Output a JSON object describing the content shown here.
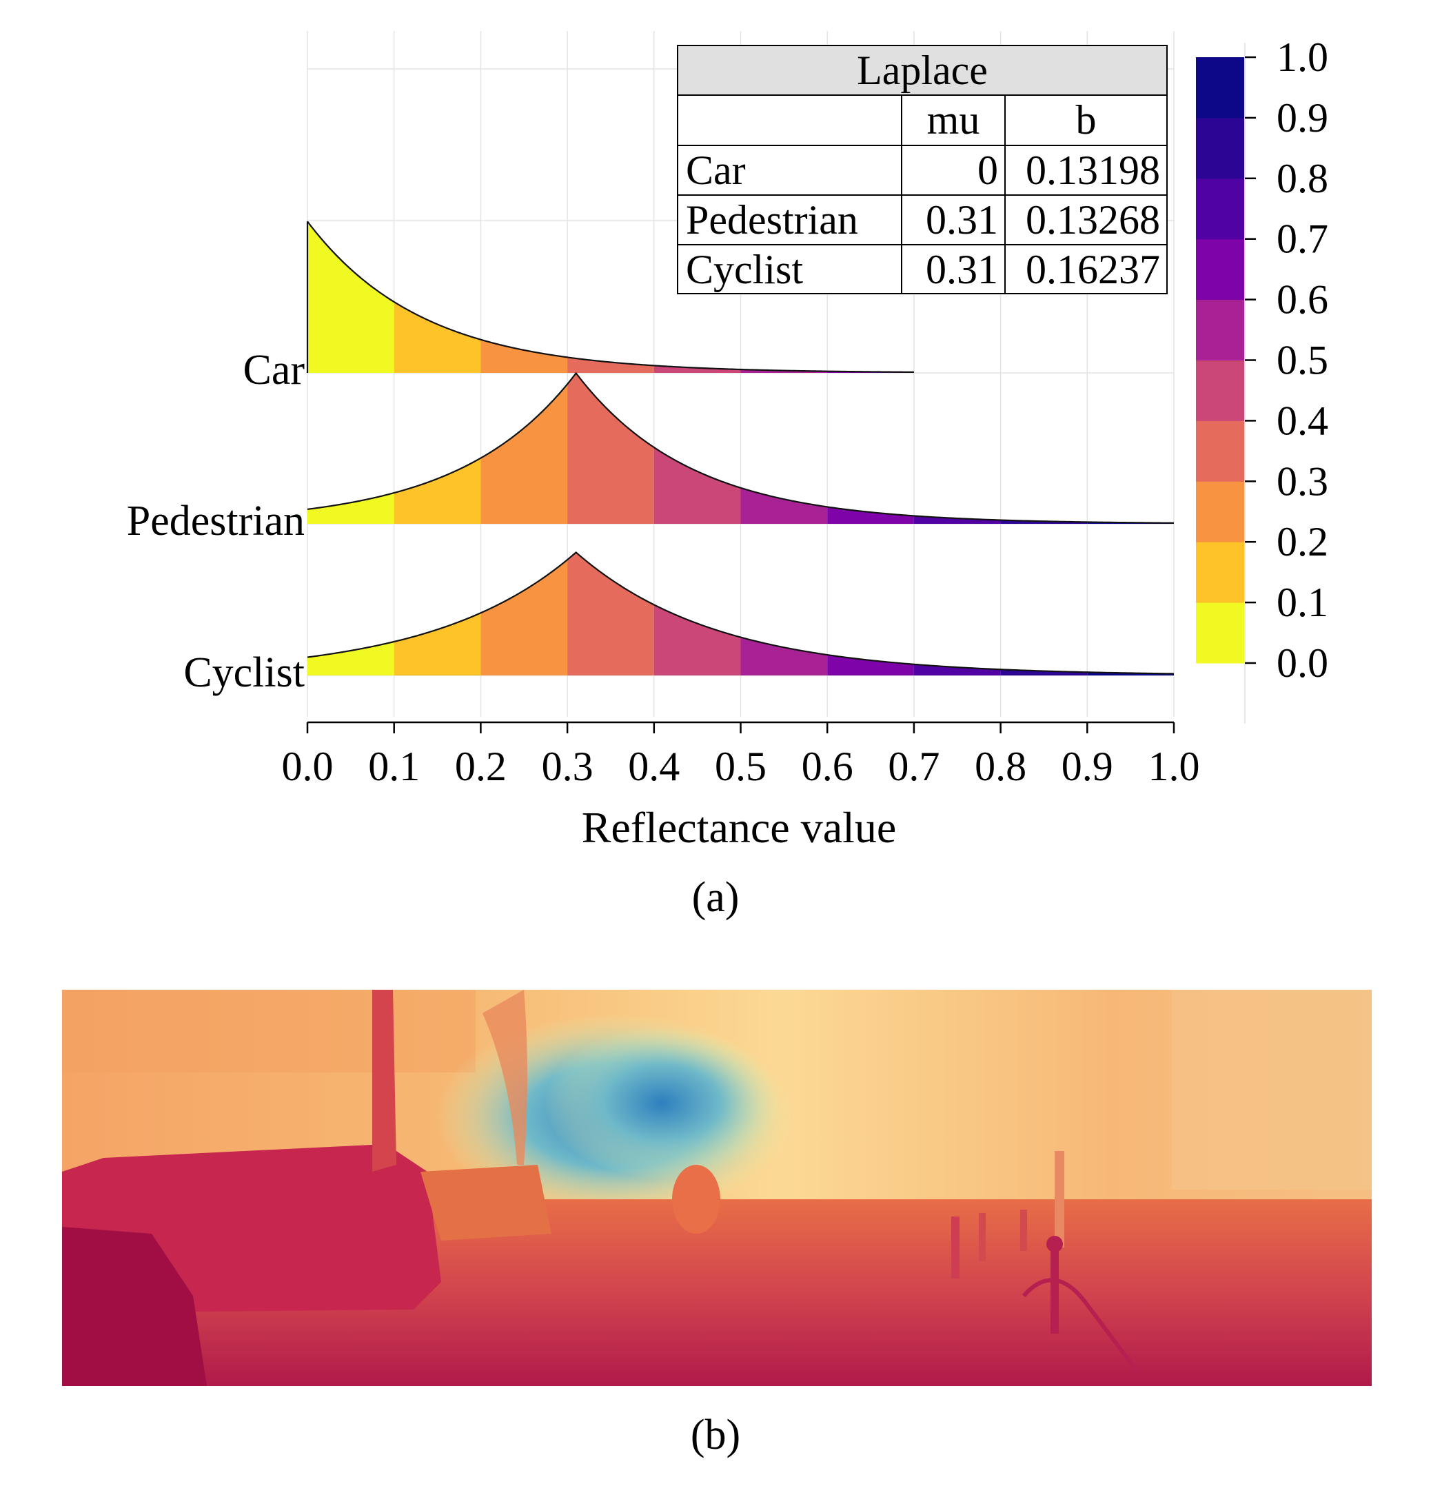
{
  "chart_data": [
    {
      "type": "ridgeline",
      "distribution": "laplace",
      "xlabel": "Reflectance value",
      "xlim": [
        0.0,
        1.0
      ],
      "xticks": [
        "0.0",
        "0.1",
        "0.2",
        "0.3",
        "0.4",
        "0.5",
        "0.6",
        "0.7",
        "0.8",
        "0.9",
        "1.0"
      ],
      "grid": true,
      "series": [
        {
          "name": "Car",
          "mu": 0,
          "b": 0.13198,
          "x_end": 0.7
        },
        {
          "name": "Pedestrian",
          "mu": 0.31,
          "b": 0.13268,
          "x_end": 1.0
        },
        {
          "name": "Cyclist",
          "mu": 0.31,
          "b": 0.16237,
          "x_end": 1.0
        }
      ],
      "table": {
        "title": "Laplace",
        "columns": [
          "",
          "mu",
          "b"
        ],
        "rows": [
          [
            "Car",
            "0",
            "0.13198"
          ],
          [
            "Pedestrian",
            "0.31",
            "0.13268"
          ],
          [
            "Cyclist",
            "0.31",
            "0.16237"
          ]
        ]
      },
      "colorbar": {
        "ticks": [
          "0.0",
          "0.1",
          "0.2",
          "0.3",
          "0.4",
          "0.5",
          "0.6",
          "0.7",
          "0.8",
          "0.9",
          "1.0"
        ],
        "colors": [
          "#F0F921",
          "#FDC328",
          "#F89441",
          "#E56B5D",
          "#CB4778",
          "#A82296",
          "#7E03A8",
          "#5002A2",
          "#2C0594",
          "#0D0887"
        ]
      },
      "caption": "(a)"
    },
    {
      "type": "image",
      "description_colormap": "reflectance map of street scene",
      "caption": "(b)"
    }
  ]
}
